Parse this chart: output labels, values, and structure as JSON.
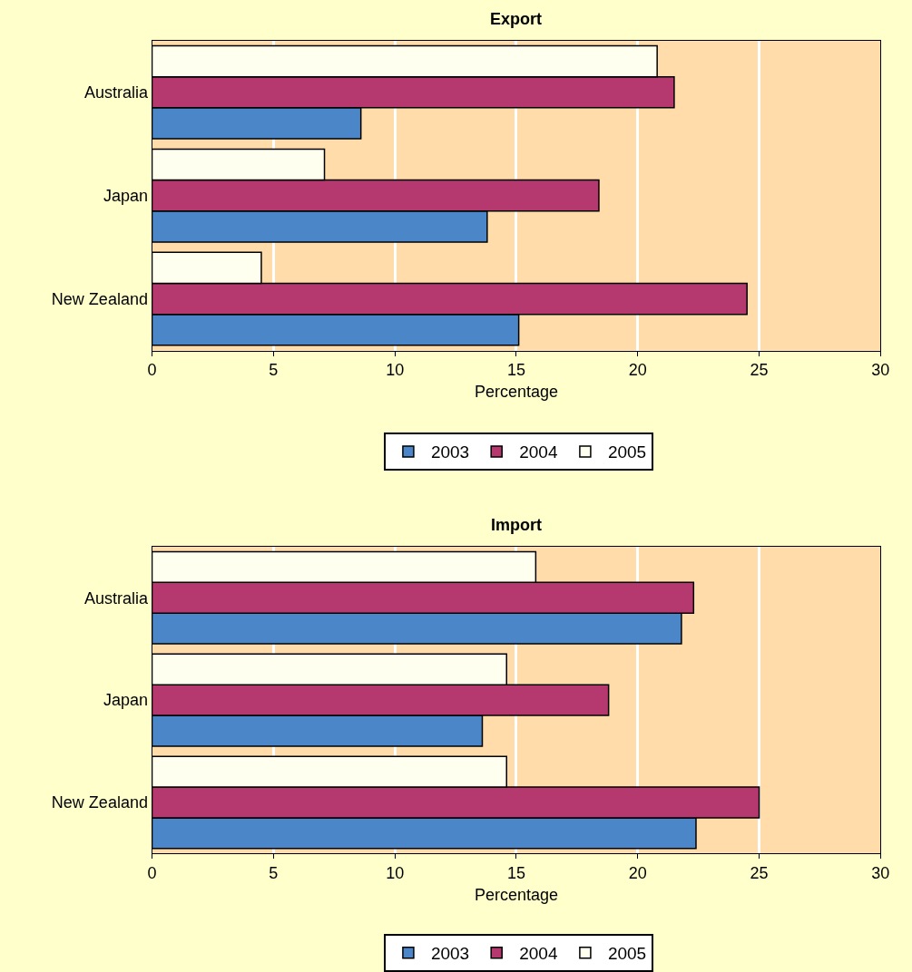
{
  "chart_data": [
    {
      "type": "bar",
      "orientation": "horizontal",
      "title": "Export",
      "xlabel": "Percentage",
      "categories": [
        "Australia",
        "Japan",
        "New Zealand"
      ],
      "series": [
        {
          "name": "2003",
          "color": "#4a86c8",
          "values": [
            8.6,
            13.8,
            15.1
          ]
        },
        {
          "name": "2004",
          "color": "#b5386f",
          "values": [
            21.5,
            18.4,
            24.5
          ]
        },
        {
          "name": "2005",
          "color": "#fffff0",
          "values": [
            20.8,
            7.1,
            4.5
          ]
        }
      ],
      "xlim": [
        0,
        30
      ],
      "xticks": [
        0,
        5,
        10,
        15,
        20,
        25,
        30
      ],
      "grid": "x",
      "legend": "bottom"
    },
    {
      "type": "bar",
      "orientation": "horizontal",
      "title": "Import",
      "xlabel": "Percentage",
      "categories": [
        "Australia",
        "Japan",
        "New Zealand"
      ],
      "series": [
        {
          "name": "2003",
          "color": "#4a86c8",
          "values": [
            21.8,
            13.6,
            22.4
          ]
        },
        {
          "name": "2004",
          "color": "#b5386f",
          "values": [
            22.3,
            18.8,
            25.0
          ]
        },
        {
          "name": "2005",
          "color": "#fffff0",
          "values": [
            15.8,
            14.6,
            14.6
          ]
        }
      ],
      "xlim": [
        0,
        30
      ],
      "xticks": [
        0,
        5,
        10,
        15,
        20,
        25,
        30
      ],
      "grid": "x",
      "legend": "bottom"
    }
  ]
}
